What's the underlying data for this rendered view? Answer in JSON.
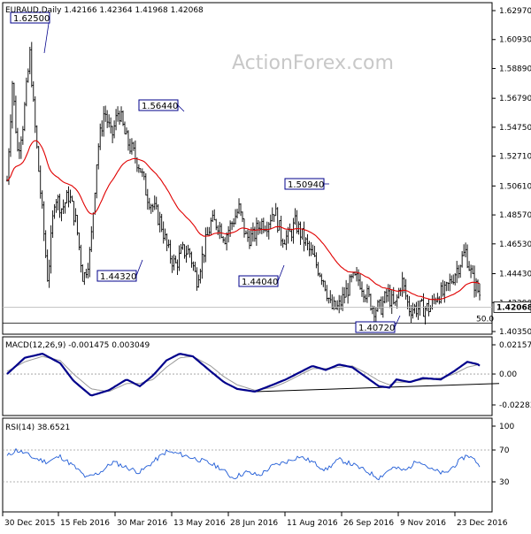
{
  "chart_data": [
    {
      "type": "candlestick",
      "header": "EURAUD,Daily  1.42166 1.42364 1.41968 1.42068",
      "watermark": "ActionForex.com",
      "y_ticks": [
        "1.62970",
        "1.60930",
        "1.58890",
        "1.56790",
        "1.54750",
        "1.52710",
        "1.50610",
        "1.48570",
        "1.46530",
        "1.44430",
        "1.42390",
        "1.40350"
      ],
      "y_tick_values": [
        1.6297,
        1.6093,
        1.5889,
        1.5679,
        1.5475,
        1.5271,
        1.5061,
        1.4857,
        1.4653,
        1.4443,
        1.4239,
        1.4035
      ],
      "ylim": [
        1.4035,
        1.6297
      ],
      "current_price": "1.42068",
      "current_value": 1.42068,
      "fib_level_label": "50.0",
      "fib_level_value": 1.4095,
      "x_ticks": [
        "30 Dec 2015",
        "15 Feb 2016",
        "30 Mar 2016",
        "13 May 2016",
        "28 Jun 2016",
        "11 Aug 2016",
        "26 Sep 2016",
        "9 Nov 2016",
        "23 Dec 2016"
      ],
      "annotations": [
        {
          "text": "1.62500",
          "value": 1.625
        },
        {
          "text": "1.56440",
          "value": 1.5644
        },
        {
          "text": "1.44320",
          "value": 1.4432
        },
        {
          "text": "1.50940",
          "value": 1.5094
        },
        {
          "text": "1.44040",
          "value": 1.4404
        },
        {
          "text": "1.40720",
          "value": 1.4072
        }
      ],
      "ema_color": "#e00000",
      "candle_color": "#000000",
      "price_anchors": [
        [
          0,
          1.51
        ],
        [
          6,
          1.58
        ],
        [
          12,
          1.53
        ],
        [
          18,
          1.55
        ],
        [
          26,
          1.6
        ],
        [
          30,
          1.56
        ],
        [
          38,
          1.5
        ],
        [
          46,
          1.44
        ],
        [
          54,
          1.5
        ],
        [
          62,
          1.49
        ],
        [
          70,
          1.5
        ],
        [
          78,
          1.48
        ],
        [
          86,
          1.44
        ],
        [
          94,
          1.46
        ],
        [
          102,
          1.53
        ],
        [
          110,
          1.56
        ],
        [
          118,
          1.54
        ],
        [
          126,
          1.56
        ],
        [
          134,
          1.54
        ],
        [
          142,
          1.53
        ],
        [
          150,
          1.52
        ],
        [
          158,
          1.5
        ],
        [
          166,
          1.49
        ],
        [
          174,
          1.48
        ],
        [
          182,
          1.46
        ],
        [
          190,
          1.45
        ],
        [
          198,
          1.46
        ],
        [
          206,
          1.46
        ],
        [
          214,
          1.44
        ],
        [
          222,
          1.46
        ],
        [
          230,
          1.48
        ],
        [
          238,
          1.48
        ],
        [
          246,
          1.47
        ],
        [
          254,
          1.48
        ],
        [
          262,
          1.49
        ],
        [
          270,
          1.47
        ],
        [
          278,
          1.47
        ],
        [
          286,
          1.48
        ],
        [
          294,
          1.48
        ],
        [
          302,
          1.49
        ],
        [
          310,
          1.47
        ],
        [
          318,
          1.47
        ],
        [
          326,
          1.48
        ],
        [
          334,
          1.47
        ],
        [
          342,
          1.46
        ],
        [
          350,
          1.45
        ],
        [
          358,
          1.44
        ],
        [
          366,
          1.42
        ],
        [
          374,
          1.42
        ],
        [
          382,
          1.43
        ],
        [
          390,
          1.44
        ],
        [
          398,
          1.44
        ],
        [
          406,
          1.43
        ],
        [
          414,
          1.42
        ],
        [
          422,
          1.42
        ],
        [
          430,
          1.43
        ],
        [
          438,
          1.42
        ],
        [
          446,
          1.44
        ],
        [
          454,
          1.42
        ],
        [
          462,
          1.42
        ],
        [
          470,
          1.42
        ],
        [
          478,
          1.42
        ],
        [
          486,
          1.43
        ],
        [
          494,
          1.43
        ],
        [
          502,
          1.44
        ],
        [
          510,
          1.45
        ],
        [
          518,
          1.46
        ],
        [
          526,
          1.44
        ],
        [
          534,
          1.43
        ],
        [
          542,
          1.42
        ]
      ]
    },
    {
      "type": "line",
      "header": "MACD(12,26,9) -0.001475 0.003049",
      "y_ticks": [
        "0.021577",
        "0.00",
        "-0.022833"
      ],
      "y_tick_values": [
        0.021577,
        0.0,
        -0.022833
      ],
      "ylim": [
        -0.022833,
        0.021577
      ],
      "series": [
        {
          "name": "MACD",
          "color": "#00008b",
          "anchors": [
            [
              0,
              0.0
            ],
            [
              20,
              0.012
            ],
            [
              40,
              0.015
            ],
            [
              60,
              0.008
            ],
            [
              75,
              -0.005
            ],
            [
              95,
              -0.016
            ],
            [
              115,
              -0.012
            ],
            [
              135,
              -0.004
            ],
            [
              150,
              -0.009
            ],
            [
              165,
              -0.001
            ],
            [
              180,
              0.01
            ],
            [
              195,
              0.015
            ],
            [
              210,
              0.013
            ],
            [
              230,
              0.002
            ],
            [
              245,
              -0.006
            ],
            [
              260,
              -0.011
            ],
            [
              280,
              -0.013
            ],
            [
              300,
              -0.008
            ],
            [
              315,
              -0.004
            ],
            [
              330,
              0.001
            ],
            [
              345,
              0.006
            ],
            [
              360,
              0.003
            ],
            [
              375,
              0.007
            ],
            [
              390,
              0.005
            ],
            [
              405,
              -0.002
            ],
            [
              420,
              -0.009
            ],
            [
              432,
              -0.01
            ],
            [
              440,
              -0.004
            ],
            [
              455,
              -0.006
            ],
            [
              470,
              -0.003
            ],
            [
              490,
              -0.004
            ],
            [
              505,
              0.002
            ],
            [
              520,
              0.009
            ],
            [
              533,
              0.007
            ],
            [
              542,
              -0.001
            ]
          ]
        },
        {
          "name": "Signal",
          "color": "#999999",
          "anchors": [
            [
              0,
              0.002
            ],
            [
              20,
              0.009
            ],
            [
              40,
              0.013
            ],
            [
              60,
              0.01
            ],
            [
              75,
              0.0
            ],
            [
              95,
              -0.011
            ],
            [
              115,
              -0.013
            ],
            [
              135,
              -0.007
            ],
            [
              150,
              -0.007
            ],
            [
              165,
              -0.004
            ],
            [
              180,
              0.005
            ],
            [
              195,
              0.012
            ],
            [
              210,
              0.013
            ],
            [
              230,
              0.006
            ],
            [
              245,
              -0.002
            ],
            [
              260,
              -0.008
            ],
            [
              280,
              -0.012
            ],
            [
              300,
              -0.01
            ],
            [
              315,
              -0.006
            ],
            [
              330,
              -0.001
            ],
            [
              345,
              0.004
            ],
            [
              360,
              0.004
            ],
            [
              375,
              0.005
            ],
            [
              390,
              0.006
            ],
            [
              405,
              0.001
            ],
            [
              420,
              -0.005
            ],
            [
              432,
              -0.008
            ],
            [
              440,
              -0.006
            ],
            [
              455,
              -0.006
            ],
            [
              470,
              -0.004
            ],
            [
              490,
              -0.003
            ],
            [
              505,
              0.0
            ],
            [
              520,
              0.005
            ],
            [
              533,
              0.007
            ],
            [
              542,
              0.003
            ]
          ]
        }
      ],
      "trendline": {
        "from": [
          280,
          -0.013
        ],
        "to": [
          556,
          -0.007
        ]
      }
    },
    {
      "type": "line",
      "header": "RSI(14) 38.6521",
      "y_ticks": [
        "100",
        "70",
        "30",
        "0"
      ],
      "y_tick_values": [
        100,
        70,
        30,
        0
      ],
      "ylim": [
        0,
        100
      ],
      "levels": [
        70,
        30
      ],
      "series": [
        {
          "name": "RSI",
          "color": "#1f5bd6",
          "anchors": [
            [
              0,
              62
            ],
            [
              10,
              70
            ],
            [
              20,
              66
            ],
            [
              30,
              60
            ],
            [
              45,
              55
            ],
            [
              60,
              62
            ],
            [
              75,
              50
            ],
            [
              90,
              35
            ],
            [
              105,
              42
            ],
            [
              120,
              55
            ],
            [
              135,
              48
            ],
            [
              150,
              42
            ],
            [
              165,
              55
            ],
            [
              180,
              68
            ],
            [
              195,
              65
            ],
            [
              210,
              60
            ],
            [
              225,
              55
            ],
            [
              240,
              48
            ],
            [
              255,
              35
            ],
            [
              270,
              42
            ],
            [
              285,
              38
            ],
            [
              300,
              50
            ],
            [
              315,
              55
            ],
            [
              330,
              62
            ],
            [
              345,
              55
            ],
            [
              360,
              45
            ],
            [
              375,
              58
            ],
            [
              390,
              52
            ],
            [
              405,
              44
            ],
            [
              420,
              35
            ],
            [
              435,
              48
            ],
            [
              450,
              44
            ],
            [
              465,
              58
            ],
            [
              480,
              45
            ],
            [
              495,
              40
            ],
            [
              510,
              55
            ],
            [
              520,
              64
            ],
            [
              530,
              56
            ],
            [
              542,
              39
            ]
          ]
        }
      ]
    }
  ]
}
